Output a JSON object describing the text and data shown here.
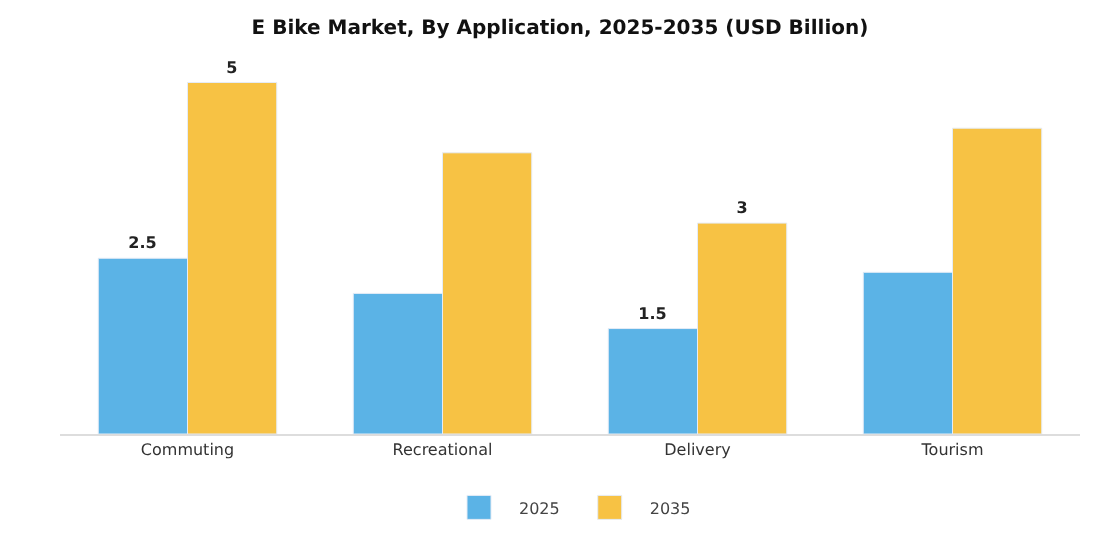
{
  "chart_data": {
    "type": "bar",
    "title": "E Bike Market, By Application, 2025-2035 (USD Billion)",
    "categories": [
      "Commuting",
      "Recreational",
      "Delivery",
      "Tourism"
    ],
    "series": [
      {
        "name": "2025",
        "color": "#5bb3e6",
        "values": [
          2.5,
          2.0,
          1.5,
          2.3
        ],
        "value_labels": [
          "2.5",
          null,
          "1.5",
          null
        ]
      },
      {
        "name": "2035",
        "color": "#f7c244",
        "values": [
          5,
          4.0,
          3,
          4.35
        ],
        "value_labels": [
          "5",
          null,
          "3",
          null
        ]
      }
    ],
    "tick_labels": "x",
    "legend": "bottom"
  }
}
